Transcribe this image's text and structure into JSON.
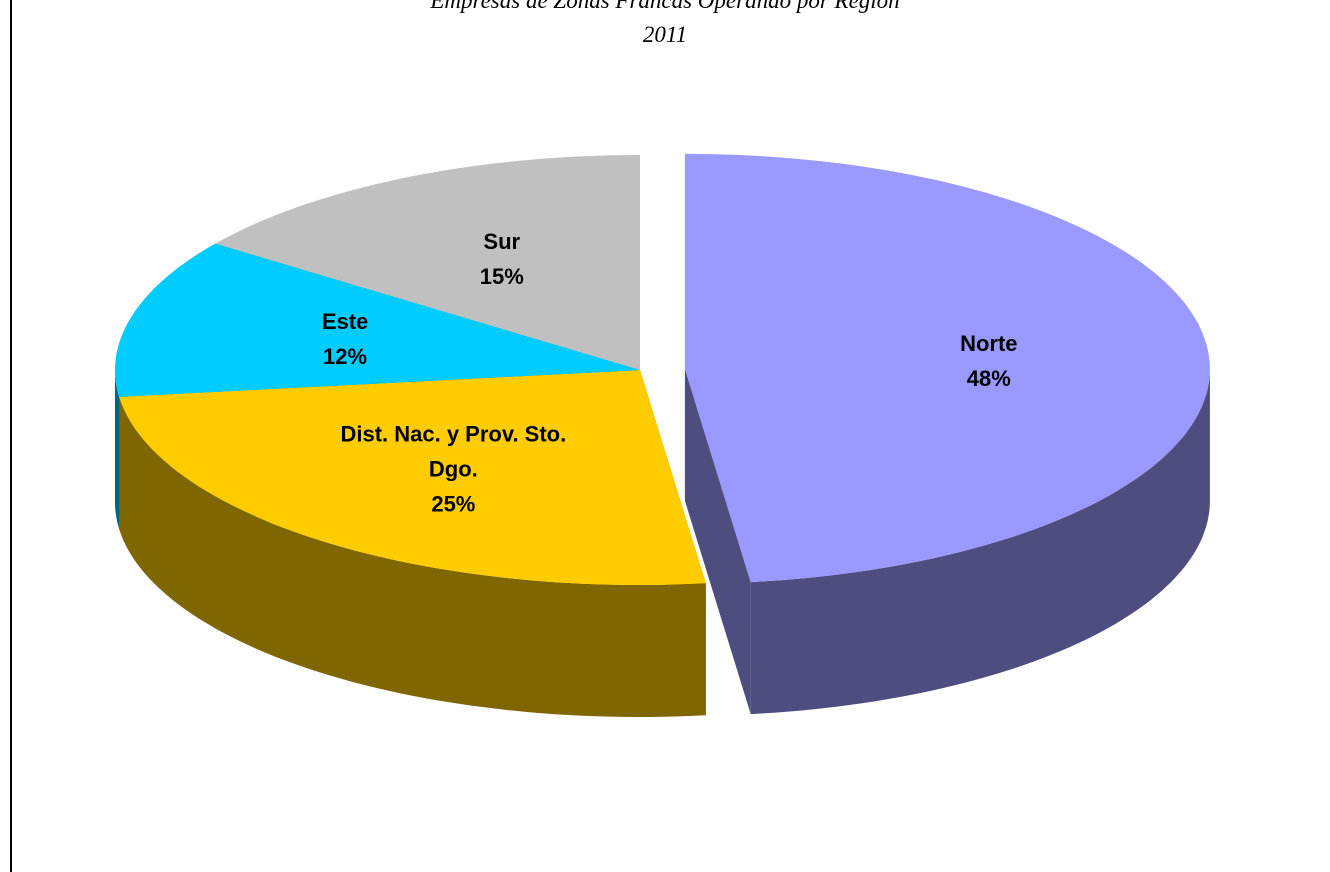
{
  "chart_data": {
    "type": "pie",
    "title": "Empresas de Zonas Francas Operando por Región",
    "subtitle": "2011",
    "categories": [
      "Norte",
      "Dist. Nac. y Prov. Sto. Dgo.",
      "Este",
      "Sur"
    ],
    "values": [
      48,
      25,
      12,
      15
    ],
    "value_labels": [
      "48%",
      "25%",
      "12%",
      "15%"
    ],
    "colors": [
      "#9999ff",
      "#ffcc00",
      "#00ccff",
      "#c0c0c0"
    ]
  }
}
